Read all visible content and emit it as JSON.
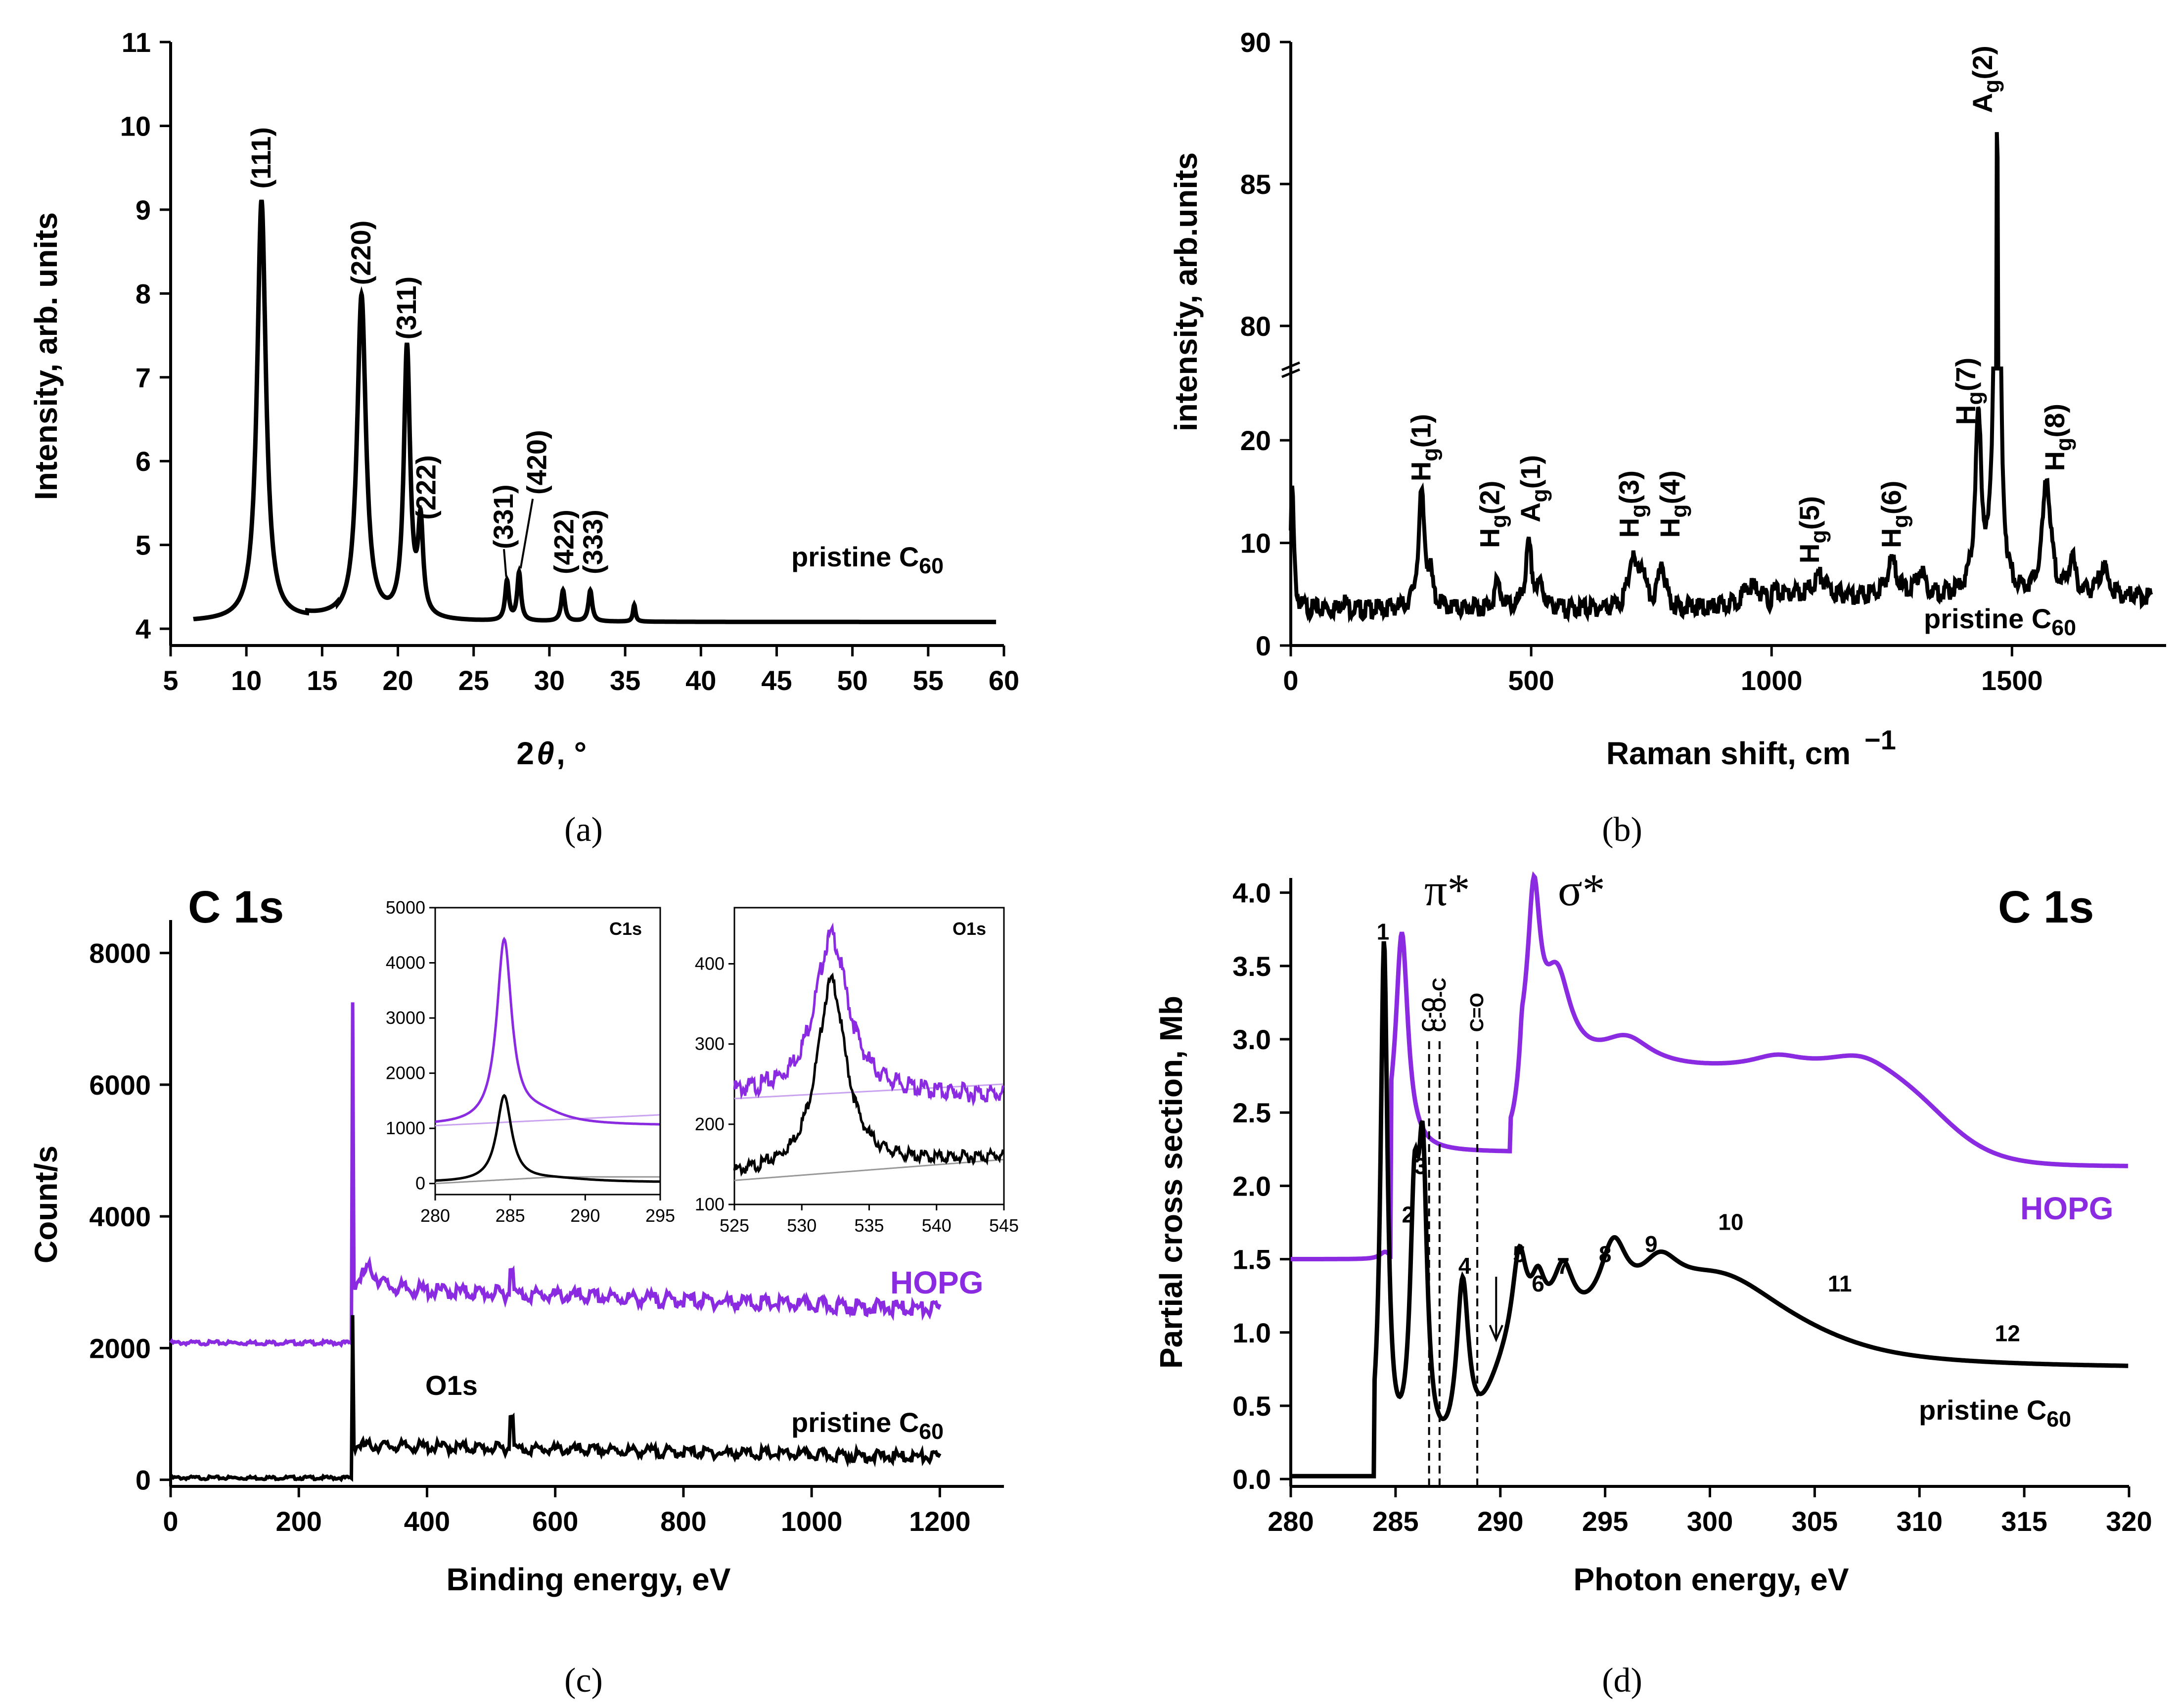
{
  "colors": {
    "black": "#000000",
    "purple": "#8a2be2",
    "light_purple": "#c9a2f0",
    "gray": "#999999"
  },
  "chart_data": [
    {
      "id": "a",
      "type": "line",
      "panel_label": "(a)",
      "xlabel": "2θ, °",
      "ylabel": "Intensity, arb. units",
      "xlim": [
        5,
        60
      ],
      "ylim": [
        3.8,
        11
      ],
      "xticks": [
        5,
        10,
        15,
        20,
        25,
        30,
        35,
        40,
        45,
        50,
        55,
        60
      ],
      "yticks": [
        4,
        5,
        6,
        7,
        8,
        9,
        10,
        11
      ],
      "series": [
        {
          "name": "pristine C60",
          "color": "#000000",
          "peaks": [
            [
              11.0,
              9.1,
              0.35
            ],
            [
              17.6,
              7.95,
              0.35
            ],
            [
              20.6,
              7.3,
              0.25
            ],
            [
              21.5,
              5.15,
              0.2
            ],
            [
              27.2,
              4.55,
              0.15
            ],
            [
              28.0,
              4.65,
              0.15
            ],
            [
              30.9,
              4.45,
              0.15
            ],
            [
              32.7,
              4.45,
              0.15
            ],
            [
              35.6,
              4.28,
              0.1
            ]
          ],
          "baseline": 4.08,
          "xrange": [
            6.5,
            59.5
          ]
        }
      ],
      "annotations": [
        {
          "text": "(111)",
          "x": 11.0,
          "y": 9.25,
          "rotate": true
        },
        {
          "text": "(220)",
          "x": 17.6,
          "y": 8.1,
          "rotate": true
        },
        {
          "text": "(311)",
          "x": 20.6,
          "y": 7.45,
          "rotate": true
        },
        {
          "text": "(222)",
          "x": 21.9,
          "y": 5.3,
          "rotate": true
        },
        {
          "text": "(331)",
          "x": 27.0,
          "y": 4.95,
          "rotate": true
        },
        {
          "text": "(420)",
          "x": 29.2,
          "y": 5.6,
          "rotate": true
        },
        {
          "text": "(422)",
          "x": 31.0,
          "y": 4.65,
          "rotate": true
        },
        {
          "text": "(333)",
          "x": 32.9,
          "y": 4.65,
          "rotate": true
        }
      ],
      "label": "pristine C60"
    },
    {
      "id": "b",
      "type": "line",
      "panel_label": "(b)",
      "xlabel": "Raman shift, cm⁻¹",
      "ylabel": "intensity, arb.units",
      "xlim": [
        0,
        1800
      ],
      "ylim_lower": [
        0,
        27
      ],
      "ylim_upper": [
        78.5,
        90
      ],
      "xticks": [
        0,
        500,
        1000,
        1500
      ],
      "yticks_lower": [
        0,
        10,
        20
      ],
      "yticks_upper": [
        80,
        85,
        90
      ],
      "series": [
        {
          "name": "pristine C60",
          "color": "#000000",
          "peaks": [
            [
              3,
              15.5,
              4
            ],
            [
              110,
              4.5,
              6
            ],
            [
              272,
              14.5,
              8
            ],
            [
              290,
              6,
              6
            ],
            [
              430,
              6,
              8
            ],
            [
              495,
              9.5,
              8
            ],
            [
              520,
              5.5,
              8
            ],
            [
              710,
              8,
              10
            ],
            [
              730,
              7,
              8
            ],
            [
              772,
              8,
              8
            ],
            [
              960,
              5.8,
              25
            ],
            [
              1100,
              5.5,
              15
            ],
            [
              1250,
              7,
              12
            ],
            [
              1310,
              6,
              10
            ],
            [
              1430,
              20,
              8
            ],
            [
              1469,
              86.5,
              5
            ],
            [
              1572,
              15,
              10
            ],
            [
              1625,
              7,
              8
            ],
            [
              1690,
              6.5,
              10
            ]
          ],
          "baseline": 3.5,
          "xrange": [
            0,
            1790
          ]
        }
      ],
      "annotations": [
        {
          "text": "Hg(1)",
          "x": 272,
          "y": 16
        },
        {
          "text": "Hg(2)",
          "x": 415,
          "y": 9.5
        },
        {
          "text": "Ag(1)",
          "x": 500,
          "y": 12
        },
        {
          "text": "Hg(3)",
          "x": 705,
          "y": 10.5
        },
        {
          "text": "Hg(4)",
          "x": 790,
          "y": 10.5
        },
        {
          "text": "Hg(5)",
          "x": 1080,
          "y": 8
        },
        {
          "text": "Hg(6)",
          "x": 1250,
          "y": 9.5
        },
        {
          "text": "Hg(7)",
          "x": 1405,
          "y": 21.5
        },
        {
          "text": "Ag(2)",
          "x": 1440,
          "y": 87.5
        },
        {
          "text": "Hg(8)",
          "x": 1590,
          "y": 17
        }
      ],
      "label": "pristine C60"
    },
    {
      "id": "c",
      "type": "line",
      "panel_label": "(c)",
      "title": "C 1s",
      "xlabel": "Binding energy, eV",
      "ylabel": "Count/s",
      "xlim": [
        0,
        1300
      ],
      "ylim": [
        -100,
        8500
      ],
      "xticks": [
        0,
        200,
        400,
        600,
        800,
        1000,
        1200
      ],
      "yticks": [
        0,
        2000,
        4000,
        6000,
        8000
      ],
      "series": [
        {
          "name": "HOPG",
          "color": "#8a2be2"
        },
        {
          "name": "pristine C60",
          "color": "#000000"
        }
      ],
      "labels": {
        "hopg": "HOPG",
        "c60": "pristine C60",
        "o1s": "O1s"
      },
      "insets": [
        {
          "title": "C1s",
          "xlim": [
            280,
            295
          ],
          "ylim": [
            -200,
            5000
          ],
          "xticks": [
            280,
            285,
            290,
            295
          ],
          "yticks": [
            0,
            1000,
            2000,
            3000,
            4000,
            5000
          ]
        },
        {
          "title": "O1s",
          "xlim": [
            525,
            545
          ],
          "ylim": [
            100,
            470
          ],
          "xticks": [
            525,
            530,
            535,
            540,
            545
          ],
          "yticks": [
            100,
            200,
            300,
            400
          ]
        }
      ]
    },
    {
      "id": "d",
      "type": "line",
      "panel_label": "(d)",
      "title": "C 1s",
      "xlabel": "Photon energy, eV",
      "ylabel": "Partial cross section, Mb",
      "xlim": [
        280,
        320
      ],
      "ylim": [
        -0.05,
        4.1
      ],
      "xticks": [
        280,
        285,
        290,
        295,
        300,
        305,
        310,
        315,
        320
      ],
      "yticks": [
        0.0,
        0.5,
        1.0,
        1.5,
        2.0,
        2.5,
        3.0,
        3.5,
        4.0
      ],
      "series": [
        {
          "name": "HOPG",
          "color": "#8a2be2"
        },
        {
          "name": "pristine C60",
          "color": "#000000"
        }
      ],
      "labels": {
        "hopg": "HOPG",
        "c60": "pristine C60",
        "pi": "π*",
        "sigma": "σ*"
      },
      "dashed": [
        {
          "x": 286.6,
          "text": "C-O"
        },
        {
          "x": 287.1,
          "text": "C-O-C"
        },
        {
          "x": 288.9,
          "text": "C=O"
        }
      ],
      "peak_numbers": [
        {
          "t": "1",
          "x": 284.4,
          "y": 3.68
        },
        {
          "t": "2",
          "x": 285.6,
          "y": 1.75
        },
        {
          "t": "3",
          "x": 286.2,
          "y": 2.08
        },
        {
          "t": "4",
          "x": 288.3,
          "y": 1.4
        },
        {
          "t": "5",
          "x": 290.9,
          "y": 1.48
        },
        {
          "t": "6",
          "x": 291.8,
          "y": 1.28
        },
        {
          "t": "7",
          "x": 293.0,
          "y": 1.4
        },
        {
          "t": "8",
          "x": 295.0,
          "y": 1.48
        },
        {
          "t": "9",
          "x": 297.2,
          "y": 1.55
        },
        {
          "t": "10",
          "x": 301.0,
          "y": 1.7
        },
        {
          "t": "11",
          "x": 306.2,
          "y": 1.28
        },
        {
          "t": "12",
          "x": 314.2,
          "y": 0.94
        }
      ]
    }
  ]
}
